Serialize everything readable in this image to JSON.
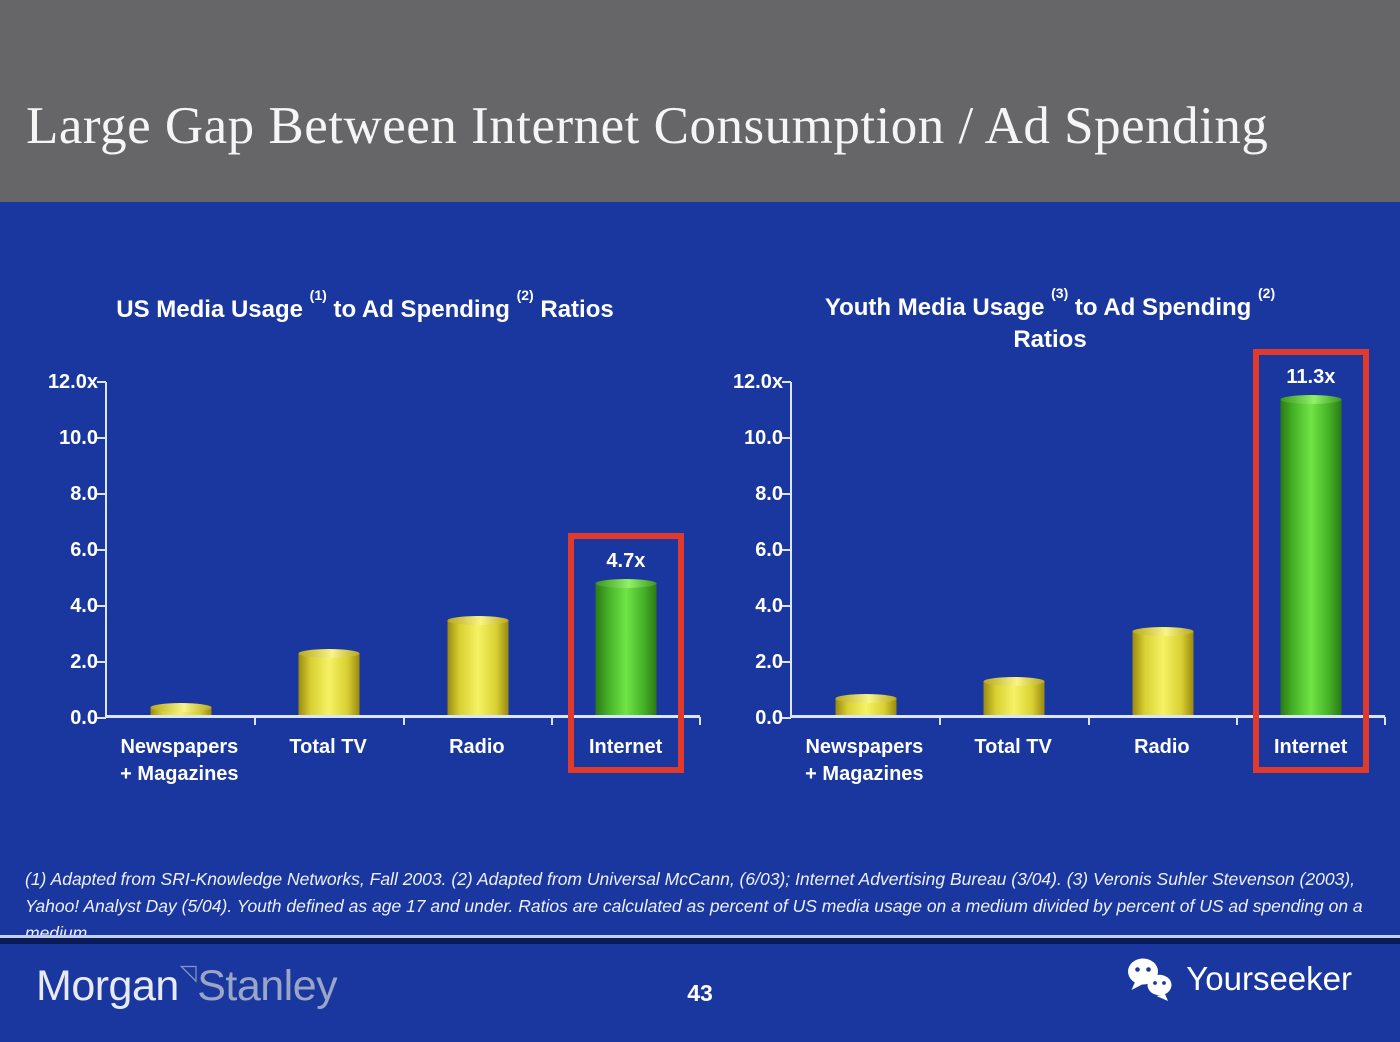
{
  "header": {
    "title": "Large Gap Between Internet Consumption / Ad Spending"
  },
  "footnote": "(1) Adapted from SRI-Knowledge Networks, Fall 2003.  (2) Adapted from Universal McCann, (6/03); Internet Advertising Bureau (3/04). (3) Veronis Suhler Stevenson (2003), Yahoo! Analyst Day (5/04).  Youth defined as age 17 and under.  Ratios are calculated as percent of US media usage on a medium divided by percent of US ad spending on a medium.",
  "footer": {
    "logo_part1": "Morgan",
    "logo_part2": "Stanley",
    "triangle_glyph": "◹",
    "page_number": "43",
    "watermark": "Yourseeker"
  },
  "icons": {
    "wechat": "wechat-icon",
    "ms_triangle": "morgan-stanley-triangle-icon"
  },
  "colors": {
    "header_gray": "#666668",
    "background_blue": "#1a37a0",
    "axis": "#dce4f8",
    "bar_yellow": "#e8dc3c",
    "bar_green": "#5ad032",
    "highlight_red": "#e03a2c"
  },
  "chart_data": [
    {
      "type": "bar",
      "title": {
        "t1": "US Media Usage",
        "s1": "(1)",
        "t2": "to Ad Spending",
        "s2": "(2)",
        "t3": "Ratios"
      },
      "categories": [
        "Newspapers + Magazines",
        "Total TV",
        "Radio",
        "Internet"
      ],
      "values": [
        0.3,
        2.2,
        3.4,
        4.7
      ],
      "bar_labels": [
        "",
        "",
        "",
        "4.7x"
      ],
      "bar_colors": [
        "yellow",
        "yellow",
        "yellow",
        "green"
      ],
      "highlight_index": 3,
      "y_ticks": [
        "12.0x",
        "10.0",
        "8.0",
        "6.0",
        "4.0",
        "2.0",
        "0.0"
      ],
      "ylim": [
        0,
        12
      ],
      "xlabel": "",
      "ylabel": "",
      "grid": false,
      "legend": false
    },
    {
      "type": "bar",
      "title": {
        "t1": "Youth Media Usage",
        "s1": "(3)",
        "t2": "to Ad Spending",
        "s2": "(2)",
        "t3": "Ratios"
      },
      "categories": [
        "Newspapers + Magazines",
        "Total TV",
        "Radio",
        "Internet"
      ],
      "values": [
        0.6,
        1.2,
        3.0,
        11.3
      ],
      "bar_labels": [
        "",
        "",
        "",
        "11.3x"
      ],
      "bar_colors": [
        "yellow",
        "yellow",
        "yellow",
        "green"
      ],
      "highlight_index": 3,
      "y_ticks": [
        "12.0x",
        "10.0",
        "8.0",
        "6.0",
        "4.0",
        "2.0",
        "0.0"
      ],
      "ylim": [
        0,
        12
      ],
      "xlabel": "",
      "ylabel": "",
      "grid": false,
      "legend": false
    }
  ]
}
